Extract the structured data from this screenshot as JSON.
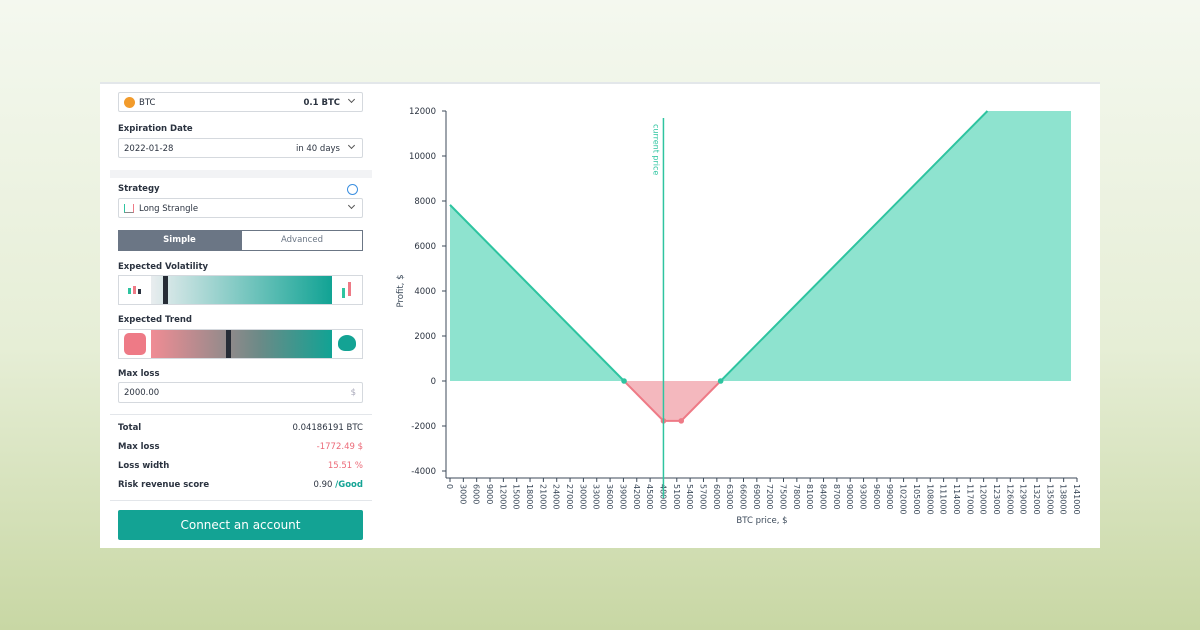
{
  "form": {
    "asset": "BTC",
    "amount": "0.1 BTC",
    "expiration_label": "Expiration Date",
    "expiration_date": "2022-01-28",
    "expiration_in": "in 40 days",
    "strategy_label": "Strategy",
    "strategy": "Long Strangle",
    "tabs": [
      "Simple",
      "Advanced"
    ],
    "volatility_label": "Expected Volatility",
    "trend_label": "Expected Trend",
    "max_loss_label": "Max loss",
    "max_loss_value": "2000.00",
    "max_loss_unit": "$",
    "summary": [
      {
        "label": "Total",
        "value": "0.04186191 BTC"
      },
      {
        "label": "Max loss",
        "value": "-1772.49 $"
      },
      {
        "label": "Loss width",
        "value": "15.51 %"
      },
      {
        "label": "Risk revenue score",
        "value": "0.90",
        "grade": "/Good"
      }
    ],
    "button": "Connect an account"
  },
  "chart_data": {
    "type": "line",
    "x_label": "BTC price, $",
    "y_label": "Profit, $",
    "annotation": "current price",
    "current_price": 48000,
    "xlim": [
      0,
      141000
    ],
    "xticks": [
      0,
      3000,
      6000,
      9000,
      12000,
      15000,
      18000,
      21000,
      24000,
      27000,
      30000,
      33000,
      36000,
      39000,
      42000,
      45000,
      48000,
      51000,
      54000,
      57000,
      60000,
      63000,
      66000,
      69000,
      72000,
      75000,
      78000,
      81000,
      84000,
      87000,
      90000,
      93000,
      96000,
      99000,
      102000,
      105000,
      108000,
      111000,
      114000,
      117000,
      120000,
      123000,
      126000,
      129000,
      132000,
      135000,
      138000,
      141000
    ],
    "ylim": [
      -4000,
      12000
    ],
    "yticks": [
      -4000,
      -2000,
      0,
      2000,
      4000,
      6000,
      8000,
      10000,
      12000
    ],
    "color": "#2ec4a0",
    "loss_color": "#ee7a86",
    "area_color": "#8ee3cf",
    "loss_area_color": "#f4b8be",
    "current_price_color": "#2ec4a0",
    "x": [
      0,
      39138,
      48000,
      52000,
      60862,
      120862
    ],
    "values": [
      7828,
      0,
      -1772.49,
      -1772.49,
      0,
      12000
    ]
  }
}
